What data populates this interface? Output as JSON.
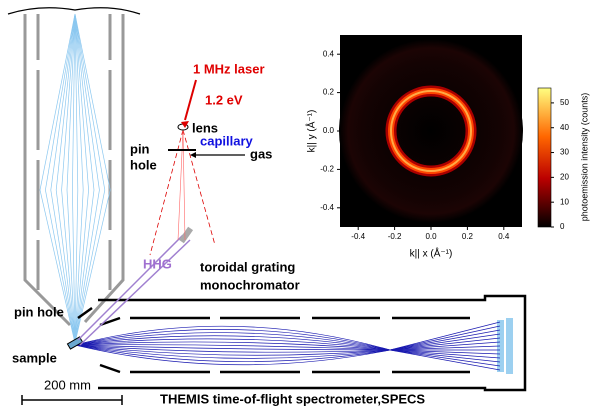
{
  "labels": {
    "laser": "1 MHz laser",
    "energy": "1.2 eV",
    "lens": "lens",
    "capillary": "capillary",
    "gas": "gas",
    "pinhole_top": [
      "pin",
      "hole"
    ],
    "hhg": "HHG",
    "monochromator": [
      "toroidal grating",
      "monochromator"
    ],
    "pinhole_bottom": "pin hole",
    "sample": "sample",
    "scale_bar": "200 mm",
    "spectrometer": "THEMIS time-of-flight spectrometer,SPECS"
  },
  "inset": {
    "type": "heatmap",
    "xlabel": "k|| x (Å⁻¹)",
    "ylabel": "k|| y (Å⁻¹)",
    "colorbar_label": "photoemission intensity (counts)",
    "xlim": [
      -0.5,
      0.5
    ],
    "ylim": [
      -0.5,
      0.5
    ],
    "xticks": [
      -0.4,
      -0.2,
      {
        "value": 0,
        "label": "0.0"
      },
      0.2,
      0.4
    ],
    "yticks": [
      -0.4,
      -0.2,
      {
        "value": 0,
        "label": "0.0"
      },
      0.2,
      0.4
    ],
    "clim": [
      0,
      56
    ],
    "cticks": [
      0,
      10,
      20,
      30,
      40,
      50
    ]
  }
}
